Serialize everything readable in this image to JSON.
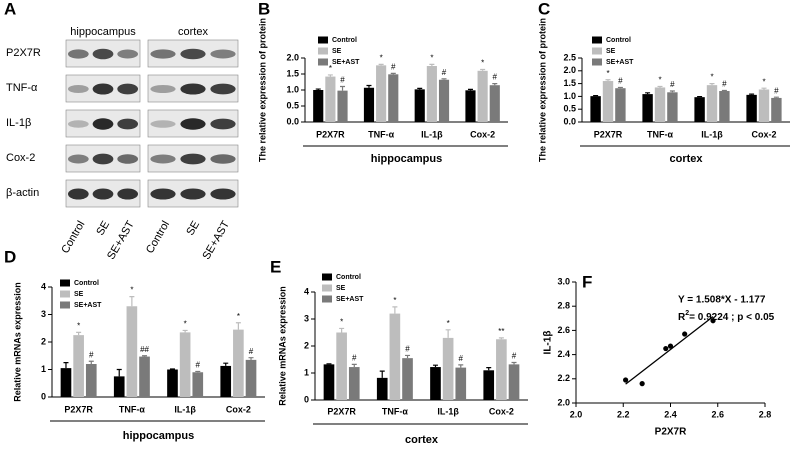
{
  "blot": {
    "panel": "A",
    "regions": [
      "hippocampus",
      "cortex"
    ],
    "proteins": [
      "P2X7R",
      "TNF-α",
      "IL-1β",
      "Cox-2",
      "β-actin"
    ],
    "lanes": [
      "Control",
      "SE",
      "SE+AST"
    ]
  },
  "chart_data": [
    {
      "type": "bar",
      "panel": "B",
      "ylabel": "The relative expression of protein",
      "xlabel": "hippocampus",
      "categories": [
        "P2X7R",
        "TNF-α",
        "IL-1β",
        "Cox-2"
      ],
      "ylim": [
        0,
        2.0
      ],
      "yticks": [
        {
          "value": 0,
          "label": "0.0"
        },
        0.5,
        {
          "value": 1,
          "label": "1.0"
        },
        1.5,
        {
          "value": 2,
          "label": "2.0"
        }
      ],
      "series": [
        {
          "name": "Control",
          "color": "#000000",
          "values": [
            1.0,
            1.07,
            1.02,
            0.99
          ],
          "errors": [
            0.03,
            0.07,
            0.03,
            0.03
          ]
        },
        {
          "name": "SE",
          "color": "#bdbdbd",
          "values": [
            1.42,
            1.77,
            1.75,
            1.6
          ],
          "errors": [
            0.05,
            0.03,
            0.05,
            0.04
          ],
          "marks": [
            "*",
            "*",
            "*",
            "*"
          ]
        },
        {
          "name": "SE+AST",
          "color": "#7a7a7a",
          "values": [
            0.98,
            1.49,
            1.32,
            1.15
          ],
          "errors": [
            0.13,
            0.03,
            0.03,
            0.05
          ],
          "marks": [
            "#",
            "#",
            "#",
            "#"
          ]
        }
      ]
    },
    {
      "type": "bar",
      "panel": "C",
      "ylabel": "The relative expression of protein",
      "xlabel": "cortex",
      "categories": [
        "P2X7R",
        "TNF-α",
        "IL-1β",
        "Cox-2"
      ],
      "ylim": [
        0,
        2.5
      ],
      "yticks": [
        {
          "value": 0,
          "label": "0.0"
        },
        0.5,
        {
          "value": 1,
          "label": "1.0"
        },
        1.5,
        {
          "value": 2,
          "label": "2.0"
        },
        2.5
      ],
      "series": [
        {
          "name": "Control",
          "color": "#000000",
          "values": [
            1.01,
            1.09,
            0.97,
            1.06
          ],
          "errors": [
            0.02,
            0.05,
            0.02,
            0.03
          ]
        },
        {
          "name": "SE",
          "color": "#bdbdbd",
          "values": [
            1.6,
            1.35,
            1.44,
            1.27
          ],
          "errors": [
            0.05,
            0.04,
            0.06,
            0.05
          ],
          "marks": [
            "*",
            "*",
            "*",
            "*"
          ]
        },
        {
          "name": "SE+AST",
          "color": "#7a7a7a",
          "values": [
            1.32,
            1.16,
            1.21,
            0.94
          ],
          "errors": [
            0.03,
            0.05,
            0.02,
            0.03
          ],
          "marks": [
            "#",
            "#",
            "#",
            "#"
          ]
        }
      ]
    },
    {
      "type": "bar",
      "panel": "D",
      "ylabel": "Relative mRNAs expression",
      "xlabel": "hippocampus",
      "categories": [
        "P2X7R",
        "TNF-α",
        "IL-1β",
        "Cox-2"
      ],
      "ylim": [
        0,
        4
      ],
      "yticks": [
        0,
        1,
        2,
        3,
        4
      ],
      "series": [
        {
          "name": "Control",
          "color": "#000000",
          "values": [
            1.05,
            0.75,
            1.0,
            1.13
          ],
          "errors": [
            0.2,
            0.25,
            0.02,
            0.1
          ]
        },
        {
          "name": "SE",
          "color": "#bdbdbd",
          "values": [
            2.25,
            3.3,
            2.35,
            2.45
          ],
          "errors": [
            0.1,
            0.35,
            0.07,
            0.25
          ],
          "marks": [
            "*",
            "*",
            "*",
            "*"
          ]
        },
        {
          "name": "SE+AST",
          "color": "#7a7a7a",
          "values": [
            1.2,
            1.47,
            0.9,
            1.35
          ],
          "errors": [
            0.1,
            0.03,
            0.03,
            0.08
          ],
          "marks": [
            "#",
            "##",
            "#",
            "#"
          ]
        }
      ]
    },
    {
      "type": "bar",
      "panel": "E",
      "ylabel": "Relative mRNAs expression",
      "xlabel": "cortex",
      "categories": [
        "P2X7R",
        "TNF-α",
        "IL-1β",
        "Cox-2"
      ],
      "ylim": [
        0,
        4
      ],
      "yticks": [
        0,
        1,
        2,
        3,
        4
      ],
      "series": [
        {
          "name": "Control",
          "color": "#000000",
          "values": [
            1.32,
            0.82,
            1.22,
            1.1
          ],
          "errors": [
            0.02,
            0.25,
            0.07,
            0.1
          ]
        },
        {
          "name": "SE",
          "color": "#bdbdbd",
          "values": [
            2.5,
            3.2,
            2.3,
            2.25
          ],
          "errors": [
            0.15,
            0.25,
            0.3,
            0.05
          ],
          "marks": [
            "*",
            "*",
            "*",
            "**"
          ]
        },
        {
          "name": "SE+AST",
          "color": "#7a7a7a",
          "values": [
            1.22,
            1.55,
            1.2,
            1.32
          ],
          "errors": [
            0.1,
            0.1,
            0.1,
            0.07
          ],
          "marks": [
            "#",
            "#",
            "#",
            "#"
          ]
        }
      ]
    },
    {
      "type": "scatter",
      "panel": "F",
      "xlabel": "P2X7R",
      "ylabel": "IL-1β",
      "x": [
        2.21,
        2.28,
        2.38,
        2.4,
        2.46,
        2.58
      ],
      "values": [
        2.19,
        2.16,
        2.45,
        2.47,
        2.57,
        2.68
      ],
      "color": "#000000",
      "xlim": [
        2.0,
        2.8
      ],
      "xticks": [
        {
          "value": 2.0,
          "label": "2.0"
        },
        2.2,
        2.4,
        2.6,
        {
          "value": 2.8,
          "label": "2.8"
        }
      ],
      "ylim": [
        2.0,
        3.0
      ],
      "yticks": [
        {
          "value": 2.0,
          "label": "2.0"
        },
        2.2,
        2.4,
        2.6,
        2.8,
        {
          "value": 3.0,
          "label": "3.0"
        }
      ],
      "fit": {
        "slope": 1.508,
        "intercept": -1.177
      },
      "equation": "Y = 1.508*X - 1.177",
      "r2": {
        "text": "R",
        "sup": "2",
        "rest": "= 0.9224  ;  p < 0.05"
      }
    }
  ]
}
